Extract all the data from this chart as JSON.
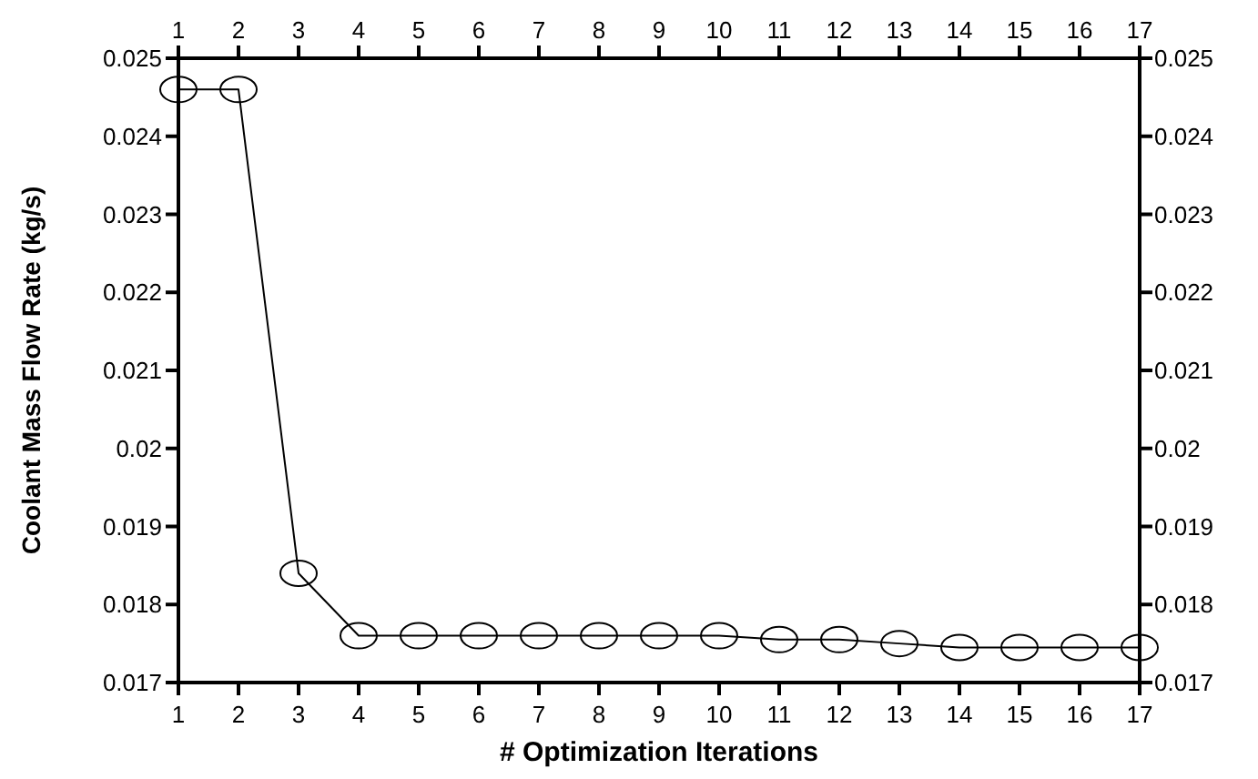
{
  "chart_data": {
    "type": "line",
    "xlabel": "# Optimization Iterations",
    "ylabel": "Coolant Mass Flow Rate (kg/s)",
    "x": [
      1,
      2,
      3,
      4,
      5,
      6,
      7,
      8,
      9,
      10,
      11,
      12,
      13,
      14,
      15,
      16,
      17
    ],
    "series": [
      {
        "color": "#000000",
        "values": [
          0.0246,
          0.0246,
          0.0184,
          0.0176,
          0.0176,
          0.0176,
          0.0176,
          0.0176,
          0.0176,
          0.0176,
          0.01755,
          0.01755,
          0.0175,
          0.01745,
          0.01745,
          0.01745,
          0.01745
        ]
      }
    ],
    "xlim": [
      1,
      17
    ],
    "xticks": [
      1,
      2,
      3,
      4,
      5,
      6,
      7,
      8,
      9,
      10,
      11,
      12,
      13,
      14,
      15,
      16,
      17
    ],
    "x2lim": [
      1,
      17
    ],
    "x2ticks": [
      1,
      2,
      3,
      4,
      5,
      6,
      7,
      8,
      9,
      10,
      11,
      12,
      13,
      14,
      15,
      16,
      17
    ],
    "ylim": [
      0.017,
      0.025
    ],
    "yticks": [
      0.017,
      0.018,
      0.019,
      0.02,
      0.021,
      0.022,
      0.023,
      0.024,
      0.025
    ],
    "y2lim": [
      0.017,
      0.025
    ],
    "y2ticks": [
      0.017,
      0.018,
      0.019,
      0.02,
      0.021,
      0.022,
      0.023,
      0.024,
      0.025
    ],
    "marker": "circle",
    "line_style": "solid",
    "grid": false
  }
}
